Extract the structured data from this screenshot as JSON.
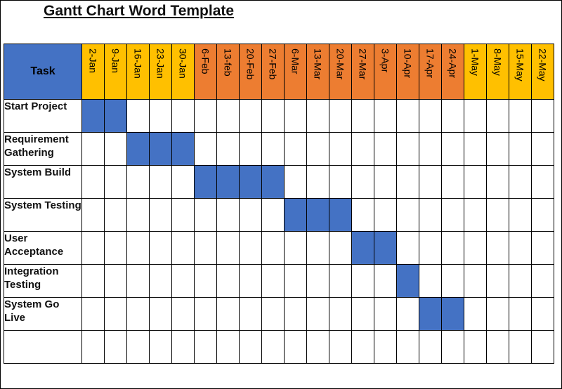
{
  "title": "Gantt Chart Word Template",
  "colors": {
    "header_task": "#4472c4",
    "date_yellow": "#ffc000",
    "date_orange": "#ed7d31",
    "bar": "#4472c4"
  },
  "chart_data": {
    "type": "table",
    "task_header": "Task",
    "dates": [
      "2-Jan",
      "9-Jan",
      "16-Jan",
      "23-Jan",
      "30-Jan",
      "6-Feb",
      "13-feb",
      "20-Feb",
      "27-Feb",
      "6-Mar",
      "13-Mar",
      "20-Mar",
      "27-Mar",
      "3-Apr",
      "10-Apr",
      "17-Apr",
      "24-Apr",
      "1-May",
      "8-May",
      "15-May",
      "22-May"
    ],
    "date_colors": [
      "yellow",
      "yellow",
      "yellow",
      "yellow",
      "yellow",
      "orange",
      "orange",
      "orange",
      "orange",
      "orange",
      "orange",
      "orange",
      "orange",
      "orange",
      "orange",
      "orange",
      "orange",
      "yellow",
      "yellow",
      "yellow",
      "yellow"
    ],
    "tasks": [
      {
        "name": "Start Project",
        "start": "2-Jan",
        "end": "9-Jan"
      },
      {
        "name": "Requirement Gathering",
        "start": "16-Jan",
        "end": "30-Jan"
      },
      {
        "name": "System Build",
        "start": "6-Feb",
        "end": "27-Feb"
      },
      {
        "name": "System Testing",
        "start": "6-Mar",
        "end": "20-Mar"
      },
      {
        "name": "User Acceptance",
        "start": "27-Mar",
        "end": "3-Apr"
      },
      {
        "name": "Integration Testing",
        "start": "10-Apr",
        "end": "10-Apr"
      },
      {
        "name": "System Go Live",
        "start": "17-Apr",
        "end": "24-Apr"
      },
      {
        "name": "",
        "start": null,
        "end": null
      }
    ]
  }
}
